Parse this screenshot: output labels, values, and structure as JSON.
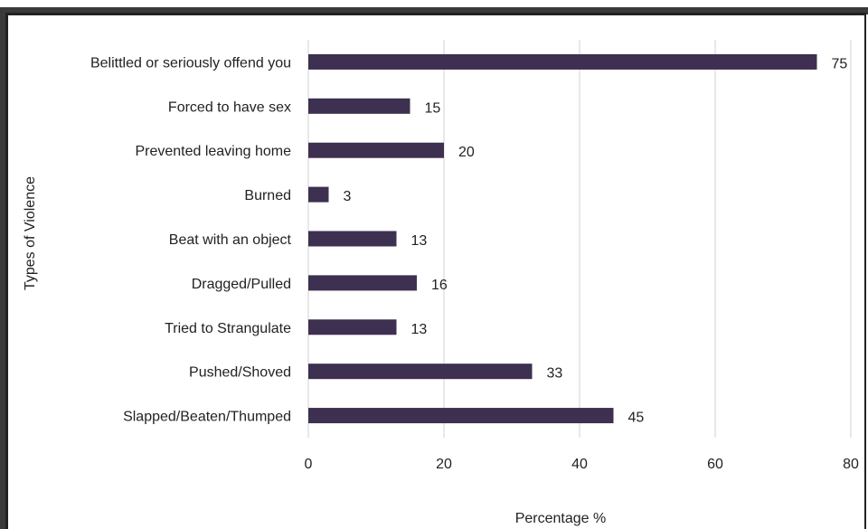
{
  "chart_data": {
    "type": "bar",
    "orientation": "horizontal",
    "categories": [
      "Belittled or seriously offend you",
      "Forced to have sex",
      "Prevented leaving home",
      "Burned",
      "Beat with an object",
      "Dragged/Pulled",
      "Tried to Strangulate",
      "Pushed/Shoved",
      "Slapped/Beaten/Thumped"
    ],
    "values": [
      75,
      15,
      20,
      3,
      13,
      16,
      13,
      33,
      45
    ],
    "xlabel": "Percentage %",
    "ylabel": "Types of Violence",
    "xlim": [
      0,
      80
    ],
    "xticks": [
      0,
      20,
      40,
      60,
      80
    ],
    "grid": "vertical",
    "bar_color": "#3e3050",
    "data_labels": true
  }
}
